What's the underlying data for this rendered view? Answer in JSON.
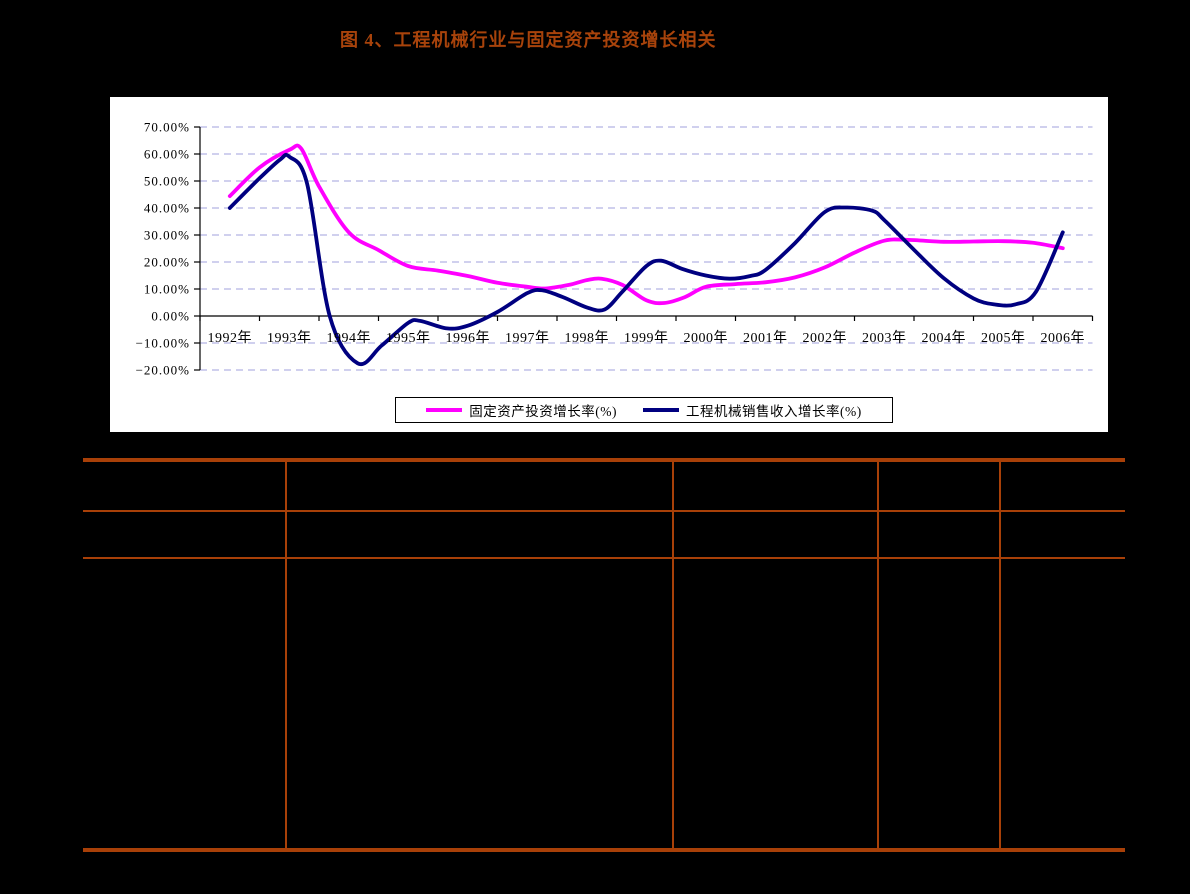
{
  "title": {
    "text": "图 4、工程机械行业与固定资产投资增长相关"
  },
  "colors": {
    "page_bg": "#000000",
    "chart_bg": "#FFFFFF",
    "title": "#A8430B",
    "table_line": "#A84008",
    "gridline": "#A0A0DC",
    "axis": "#000000",
    "series_fixed_asset": "#FF00FF",
    "series_machinery": "#000080"
  },
  "chart_data": {
    "type": "line",
    "title": "图 4、工程机械行业与固定资产投资增长相关",
    "categories": [
      "1992年",
      "1993年",
      "1994年",
      "1995年",
      "1996年",
      "1997年",
      "1998年",
      "1999年",
      "2000年",
      "2001年",
      "2002年",
      "2003年",
      "2004年",
      "2005年",
      "2006年"
    ],
    "y_ticks": [
      "70.00%",
      "60.00%",
      "50.00%",
      "40.00%",
      "30.00%",
      "20.00%",
      "10.00%",
      "0.00%",
      "−10.00%",
      "−20.00%"
    ],
    "ylim": [
      -20,
      70
    ],
    "ytick_step": 10,
    "grid": "horizontal-dashed",
    "legend_position": "bottom-center",
    "xlabel": "",
    "ylabel": "",
    "series": [
      {
        "name": "固定资产投资增长率(%)",
        "color": "#FF00FF",
        "values": [
          44.4,
          61.8,
          31,
          18.5,
          14.8,
          10.8,
          13.3,
          5.8,
          10.8,
          12.5,
          18,
          27.9,
          27.5,
          27.7,
          25.1
        ],
        "smooth_points": [
          [
            1992,
            44.4
          ],
          [
            1992.5,
            55
          ],
          [
            1993,
            61.5
          ],
          [
            1993.2,
            62
          ],
          [
            1993.5,
            48
          ],
          [
            1994,
            31
          ],
          [
            1994.5,
            24.4
          ],
          [
            1995,
            18.5
          ],
          [
            1995.5,
            16.8
          ],
          [
            1996,
            14.8
          ],
          [
            1996.5,
            12.3
          ],
          [
            1997,
            10.8
          ],
          [
            1997.3,
            10.2
          ],
          [
            1997.7,
            11.5
          ],
          [
            1998,
            13.3
          ],
          [
            1998.25,
            13.8
          ],
          [
            1998.6,
            11.5
          ],
          [
            1999,
            5.8
          ],
          [
            1999.3,
            4.8
          ],
          [
            1999.65,
            7
          ],
          [
            2000,
            10.8
          ],
          [
            2000.5,
            11.8
          ],
          [
            2001,
            12.5
          ],
          [
            2001.5,
            14.3
          ],
          [
            2002,
            18
          ],
          [
            2002.5,
            23.5
          ],
          [
            2003,
            27.9
          ],
          [
            2003.4,
            28.2
          ],
          [
            2004,
            27.5
          ],
          [
            2004.5,
            27.6
          ],
          [
            2005,
            27.7
          ],
          [
            2005.5,
            27.1
          ],
          [
            2006,
            25.1
          ]
        ]
      },
      {
        "name": "工程机械销售收入增长率(%)",
        "color": "#000080",
        "values": [
          40,
          59,
          -14,
          -2.5,
          -3.6,
          8.5,
          3.2,
          18.5,
          15,
          17,
          38.5,
          35.5,
          14,
          4.5,
          31
        ],
        "smooth_points": [
          [
            1992,
            40
          ],
          [
            1992.5,
            51
          ],
          [
            1992.85,
            58
          ],
          [
            1993,
            59
          ],
          [
            1993.3,
            49
          ],
          [
            1993.68,
            0
          ],
          [
            1994.15,
            -17.5
          ],
          [
            1994.55,
            -11
          ],
          [
            1995,
            -2.5
          ],
          [
            1995.2,
            -1.8
          ],
          [
            1995.65,
            -4.6
          ],
          [
            1996,
            -3.6
          ],
          [
            1996.5,
            1.5
          ],
          [
            1997,
            8.5
          ],
          [
            1997.25,
            9.5
          ],
          [
            1997.6,
            7
          ],
          [
            1998,
            3.2
          ],
          [
            1998.3,
            2.4
          ],
          [
            1998.6,
            9
          ],
          [
            1999,
            18.5
          ],
          [
            1999.25,
            20.5
          ],
          [
            1999.6,
            17.5
          ],
          [
            2000,
            15
          ],
          [
            2000.4,
            13.8
          ],
          [
            2000.75,
            14.8
          ],
          [
            2001,
            17
          ],
          [
            2001.5,
            27
          ],
          [
            2002,
            38.5
          ],
          [
            2002.35,
            40.2
          ],
          [
            2002.8,
            39
          ],
          [
            2003,
            35.5
          ],
          [
            2003.5,
            24.5
          ],
          [
            2004,
            14
          ],
          [
            2004.5,
            6.5
          ],
          [
            2004.85,
            4.3
          ],
          [
            2005.2,
            4.3
          ],
          [
            2005.55,
            9
          ],
          [
            2006,
            31
          ]
        ]
      }
    ]
  },
  "table": {
    "cells": [
      [
        "",
        "",
        "",
        "",
        ""
      ],
      [
        "",
        "",
        "",
        "",
        ""
      ],
      [
        "",
        "",
        "",
        "",
        ""
      ]
    ]
  }
}
